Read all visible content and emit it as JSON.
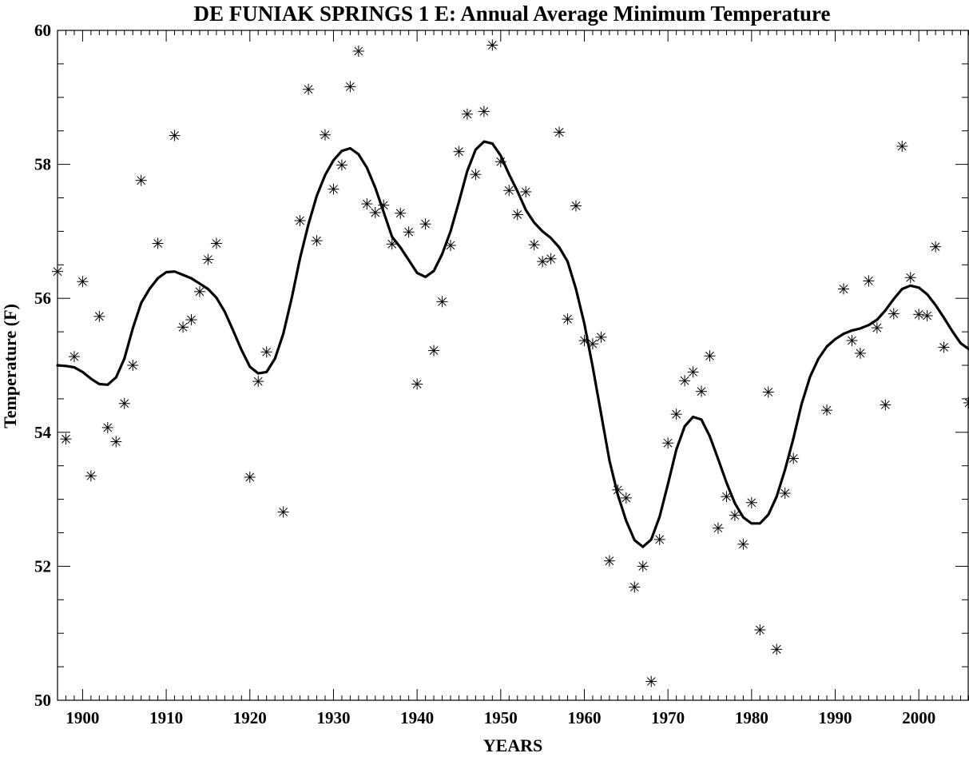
{
  "chart_data": {
    "type": "scatter",
    "title": "DE FUNIAK SPRINGS 1 E: Annual Average Minimum Temperature",
    "xlabel": "YEARS",
    "ylabel": "Temperature (F)",
    "xlim": [
      1897,
      2006
    ],
    "ylim": [
      50,
      60
    ],
    "xticks": [
      1900,
      1910,
      1920,
      1930,
      1940,
      1950,
      1960,
      1970,
      1980,
      1990,
      2000
    ],
    "yticks": [
      50,
      52,
      54,
      56,
      58,
      60
    ],
    "xtick_labels": [
      "1900",
      "1910",
      "1920",
      "1930",
      "1940",
      "1950",
      "1960",
      "1970",
      "1980",
      "1990",
      "2000"
    ],
    "ytick_labels": [
      "50",
      "52",
      "54",
      "56",
      "58",
      "60"
    ],
    "grid": false,
    "marker": "asterisk",
    "series": [
      {
        "kind": "points",
        "x": [
          1897,
          1898,
          1899,
          1900,
          1901,
          1902,
          1903,
          1904,
          1905,
          1906,
          1907,
          1909,
          1911,
          1912,
          1913,
          1914,
          1915,
          1916,
          1920,
          1921,
          1922,
          1924,
          1926,
          1927,
          1928,
          1929,
          1930,
          1931,
          1932,
          1933,
          1934,
          1935,
          1936,
          1937,
          1938,
          1939,
          1940,
          1941,
          1942,
          1943,
          1944,
          1945,
          1946,
          1947,
          1948,
          1949,
          1950,
          1951,
          1952,
          1953,
          1954,
          1955,
          1956,
          1957,
          1958,
          1959,
          1960,
          1961,
          1962,
          1963,
          1964,
          1965,
          1966,
          1967,
          1968,
          1969,
          1970,
          1971,
          1972,
          1973,
          1974,
          1975,
          1976,
          1977,
          1978,
          1979,
          1980,
          1981,
          1982,
          1983,
          1984,
          1985,
          1989,
          1991,
          1992,
          1993,
          1994,
          1995,
          1996,
          1997,
          1998,
          1999,
          2000,
          2001,
          2002,
          2003,
          2006
        ],
        "y": [
          56.4,
          53.9,
          55.13,
          56.25,
          53.35,
          55.73,
          54.07,
          53.86,
          54.43,
          55.0,
          57.76,
          56.82,
          58.43,
          55.57,
          55.68,
          56.1,
          56.58,
          56.82,
          53.33,
          54.76,
          55.2,
          52.81,
          57.16,
          59.12,
          56.86,
          58.44,
          57.63,
          57.99,
          59.16,
          59.69,
          57.41,
          57.28,
          57.39,
          56.81,
          57.27,
          56.99,
          54.72,
          57.11,
          55.22,
          55.95,
          56.79,
          58.19,
          58.75,
          57.85,
          58.79,
          59.78,
          58.04,
          57.61,
          57.25,
          57.59,
          56.8,
          56.55,
          56.59,
          58.48,
          55.69,
          57.38,
          55.37,
          55.32,
          55.42,
          52.08,
          53.14,
          53.02,
          51.69,
          52.0,
          50.28,
          52.4,
          53.84,
          54.27,
          54.77,
          54.9,
          54.61,
          55.14,
          52.57,
          53.04,
          52.76,
          52.33,
          52.95,
          51.05,
          54.6,
          50.76,
          53.09,
          53.61,
          54.33,
          56.14,
          55.37,
          55.18,
          56.26,
          55.56,
          54.41,
          55.77,
          58.27,
          56.31,
          55.76,
          55.74,
          56.77,
          55.27,
          54.44
        ]
      },
      {
        "kind": "smoothed-line",
        "x": [
          1897,
          1898,
          1899,
          1900,
          1901,
          1902,
          1903,
          1904,
          1905,
          1906,
          1907,
          1908,
          1909,
          1910,
          1911,
          1912,
          1913,
          1914,
          1915,
          1916,
          1917,
          1918,
          1919,
          1920,
          1921,
          1922,
          1923,
          1924,
          1925,
          1926,
          1927,
          1928,
          1929,
          1930,
          1931,
          1932,
          1933,
          1934,
          1935,
          1936,
          1937,
          1938,
          1939,
          1940,
          1941,
          1942,
          1943,
          1944,
          1945,
          1946,
          1947,
          1948,
          1949,
          1950,
          1951,
          1952,
          1953,
          1954,
          1955,
          1956,
          1957,
          1958,
          1959,
          1960,
          1961,
          1962,
          1963,
          1964,
          1965,
          1966,
          1967,
          1968,
          1969,
          1970,
          1971,
          1972,
          1973,
          1974,
          1975,
          1976,
          1977,
          1978,
          1979,
          1980,
          1981,
          1982,
          1983,
          1984,
          1985,
          1986,
          1987,
          1988,
          1989,
          1990,
          1991,
          1992,
          1993,
          1994,
          1995,
          1996,
          1997,
          1998,
          1999,
          2000,
          2001,
          2002,
          2003,
          2004,
          2005,
          2006
        ],
        "y": [
          55.0,
          54.99,
          54.97,
          54.9,
          54.8,
          54.72,
          54.71,
          54.82,
          55.1,
          55.55,
          55.93,
          56.14,
          56.3,
          56.39,
          56.4,
          56.35,
          56.3,
          56.22,
          56.14,
          56.01,
          55.8,
          55.52,
          55.23,
          54.98,
          54.88,
          54.9,
          55.1,
          55.47,
          56.0,
          56.6,
          57.1,
          57.53,
          57.84,
          58.06,
          58.2,
          58.24,
          58.15,
          57.95,
          57.65,
          57.29,
          56.92,
          56.76,
          56.57,
          56.38,
          56.32,
          56.41,
          56.66,
          57.0,
          57.44,
          57.9,
          58.22,
          58.34,
          58.31,
          58.13,
          57.85,
          57.6,
          57.32,
          57.13,
          57.0,
          56.9,
          56.76,
          56.55,
          56.14,
          55.62,
          54.98,
          54.28,
          53.58,
          53.07,
          52.68,
          52.39,
          52.29,
          52.4,
          52.74,
          53.23,
          53.74,
          54.09,
          54.23,
          54.19,
          53.94,
          53.6,
          53.25,
          52.94,
          52.73,
          52.64,
          52.64,
          52.77,
          53.04,
          53.44,
          53.91,
          54.43,
          54.83,
          55.1,
          55.28,
          55.39,
          55.47,
          55.52,
          55.55,
          55.6,
          55.68,
          55.82,
          55.99,
          56.14,
          56.19,
          56.16,
          56.06,
          55.9,
          55.71,
          55.51,
          55.33,
          55.24
        ]
      }
    ]
  }
}
